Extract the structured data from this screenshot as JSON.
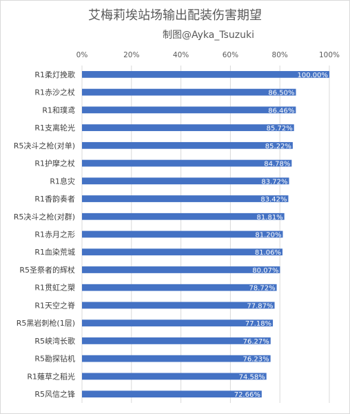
{
  "chart_data": {
    "type": "bar",
    "orientation": "horizontal",
    "title": "艾梅莉埃站场输出配装伤害期望",
    "subtitle": "制图@Ayka_Tsuzuki",
    "axis_position": "top",
    "xlim": [
      0,
      100
    ],
    "x_ticks": [
      "0%",
      "20%",
      "40%",
      "60%",
      "80%",
      "100%"
    ],
    "grid": true,
    "bar_color": "#4472c4",
    "categories": [
      "R1柔灯挽歌",
      "R1赤沙之杖",
      "R1和璞鸢",
      "R1支离轮光",
      "R5决斗之枪(对单)",
      "R1护摩之杖",
      "R1息灾",
      "R1香韵奏者",
      "R5决斗之枪(对群)",
      "R1赤月之形",
      "R1血染荒城",
      "R5圣祭者的辉杖",
      "R1贯虹之槊",
      "R1天空之脊",
      "R5黑岩刺枪(1层)",
      "R5峡湾长歌",
      "R5勘探钻机",
      "R1薙草之稻光",
      "R5风信之锋"
    ],
    "values": [
      100.0,
      86.5,
      86.46,
      85.72,
      85.22,
      84.78,
      83.72,
      83.42,
      81.81,
      81.2,
      81.06,
      80.07,
      78.72,
      77.87,
      77.18,
      76.27,
      76.23,
      74.58,
      72.66
    ],
    "data_labels": [
      "100.00%",
      "86.50%",
      "86.46%",
      "85.72%",
      "85.22%",
      "84.78%",
      "83.72%",
      "83.42%",
      "81.81%",
      "81.20%",
      "81.06%",
      "80.07%",
      "78.72%",
      "77.87%",
      "77.18%",
      "76.27%",
      "76.23%",
      "74.58%",
      "72.66%"
    ]
  }
}
